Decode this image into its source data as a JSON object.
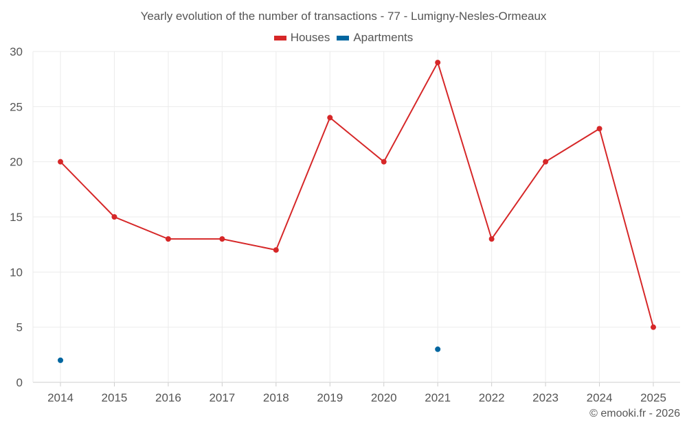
{
  "title": "Yearly evolution of the number of transactions - 77 - Lumigny-Nesles-Ormeaux",
  "legend": [
    {
      "label": "Houses",
      "color": "#d62728"
    },
    {
      "label": "Apartments",
      "color": "#0066a0"
    }
  ],
  "credit": "© emooki.fr - 2026",
  "chart_data": {
    "type": "line",
    "title": "Yearly evolution of the number of transactions - 77 - Lumigny-Nesles-Ormeaux",
    "xlabel": "",
    "ylabel": "",
    "categories": [
      "2014",
      "2015",
      "2016",
      "2017",
      "2018",
      "2019",
      "2020",
      "2021",
      "2022",
      "2023",
      "2024",
      "2025"
    ],
    "series": [
      {
        "name": "Houses",
        "color": "#d62728",
        "values": [
          20,
          15,
          13,
          13,
          12,
          24,
          20,
          29,
          13,
          20,
          23,
          5
        ]
      },
      {
        "name": "Apartments",
        "color": "#0066a0",
        "values": [
          2,
          null,
          null,
          null,
          null,
          null,
          null,
          3,
          null,
          null,
          null,
          null
        ]
      }
    ],
    "ylim": [
      0,
      30
    ],
    "yticks": [
      0,
      5,
      10,
      15,
      20,
      25,
      30
    ],
    "grid": true,
    "legend_position": "top"
  }
}
